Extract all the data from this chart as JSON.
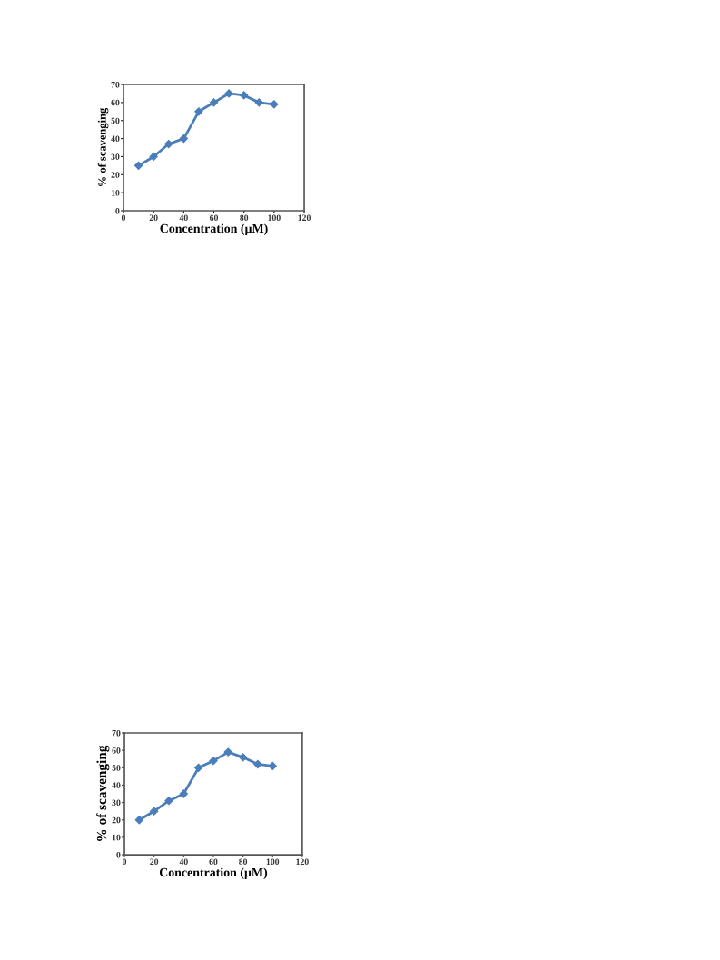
{
  "chart_data": [
    {
      "type": "line",
      "xlabel": "Concentration (µM)",
      "ylabel": "% of scavenging",
      "x": [
        10,
        20,
        30,
        40,
        50,
        60,
        70,
        80,
        90,
        100
      ],
      "series": [
        {
          "color": "#4a7ebb",
          "values": [
            25,
            30,
            37,
            40,
            55,
            60,
            65,
            64,
            60,
            59
          ]
        }
      ],
      "xlim": [
        0,
        120
      ],
      "xticks": [
        0,
        20,
        40,
        60,
        80,
        100,
        120
      ],
      "ylim": [
        0,
        70
      ],
      "yticks": [
        0,
        10,
        20,
        30,
        40,
        50,
        60,
        70
      ],
      "marker": "diamond",
      "line_style": "solid",
      "grid": false,
      "legend": false
    },
    {
      "type": "line",
      "xlabel": "Concentration (µM)",
      "ylabel": "% of scavenging",
      "x": [
        10,
        20,
        30,
        40,
        50,
        60,
        70,
        80,
        90,
        100
      ],
      "series": [
        {
          "color": "#4a7ebb",
          "values": [
            20,
            25,
            31,
            35,
            50,
            54,
            59,
            56,
            52,
            51
          ]
        }
      ],
      "xlim": [
        0,
        120
      ],
      "xticks": [
        0,
        20,
        40,
        60,
        80,
        100,
        120
      ],
      "ylim": [
        0,
        70
      ],
      "yticks": [
        0,
        10,
        20,
        30,
        40,
        50,
        60,
        70
      ],
      "marker": "diamond",
      "line_style": "solid",
      "grid": false,
      "legend": false
    }
  ]
}
